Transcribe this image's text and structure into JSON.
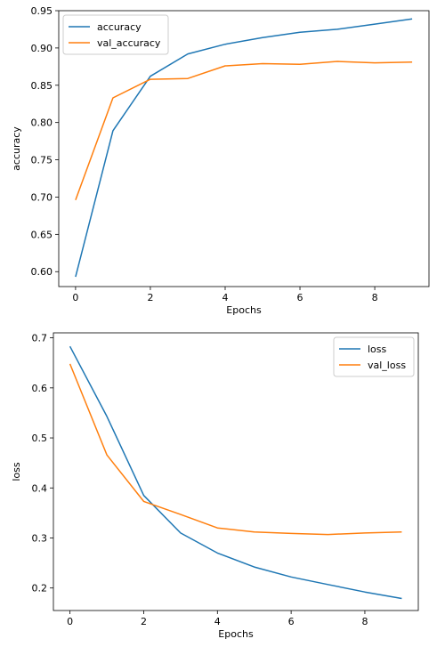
{
  "chart_data": [
    {
      "type": "line",
      "title": "",
      "xlabel": "Epochs",
      "ylabel": "accuracy",
      "xlim": [
        -0.45,
        9.45
      ],
      "ylim": [
        0.58,
        0.95
      ],
      "xticks": [
        0,
        2,
        4,
        6,
        8
      ],
      "yticks": [
        0.6,
        0.65,
        0.7,
        0.75,
        0.8,
        0.85,
        0.9,
        0.95
      ],
      "ytick_labels": [
        "0.60",
        "0.65",
        "0.70",
        "0.75",
        "0.80",
        "0.85",
        "0.90",
        "0.95"
      ],
      "legend_position": "upper-left",
      "grid": false,
      "x": [
        0,
        1,
        2,
        3,
        4,
        5,
        6,
        7,
        8,
        9
      ],
      "series": [
        {
          "name": "accuracy",
          "color": "#1f77b4",
          "values": [
            0.593,
            0.789,
            0.862,
            0.892,
            0.905,
            0.914,
            0.921,
            0.925,
            0.932,
            0.939
          ]
        },
        {
          "name": "val_accuracy",
          "color": "#ff7f0e",
          "values": [
            0.696,
            0.833,
            0.858,
            0.859,
            0.876,
            0.879,
            0.878,
            0.882,
            0.88,
            0.881
          ]
        }
      ]
    },
    {
      "type": "line",
      "title": "",
      "xlabel": "Epochs",
      "ylabel": "loss",
      "xlim": [
        -0.45,
        9.45
      ],
      "ylim": [
        0.155,
        0.71
      ],
      "xticks": [
        0,
        2,
        4,
        6,
        8
      ],
      "yticks": [
        0.2,
        0.3,
        0.4,
        0.5,
        0.6,
        0.7
      ],
      "ytick_labels": [
        "0.2",
        "0.3",
        "0.4",
        "0.5",
        "0.6",
        "0.7"
      ],
      "legend_position": "upper-right",
      "grid": false,
      "x": [
        0,
        1,
        2,
        3,
        4,
        5,
        6,
        7,
        8,
        9
      ],
      "series": [
        {
          "name": "loss",
          "color": "#1f77b4",
          "values": [
            0.683,
            0.543,
            0.385,
            0.31,
            0.27,
            0.242,
            0.222,
            0.207,
            0.192,
            0.179
          ]
        },
        {
          "name": "val_loss",
          "color": "#ff7f0e",
          "values": [
            0.648,
            0.466,
            0.373,
            0.347,
            0.32,
            0.312,
            0.309,
            0.307,
            0.31,
            0.312
          ]
        }
      ]
    }
  ]
}
